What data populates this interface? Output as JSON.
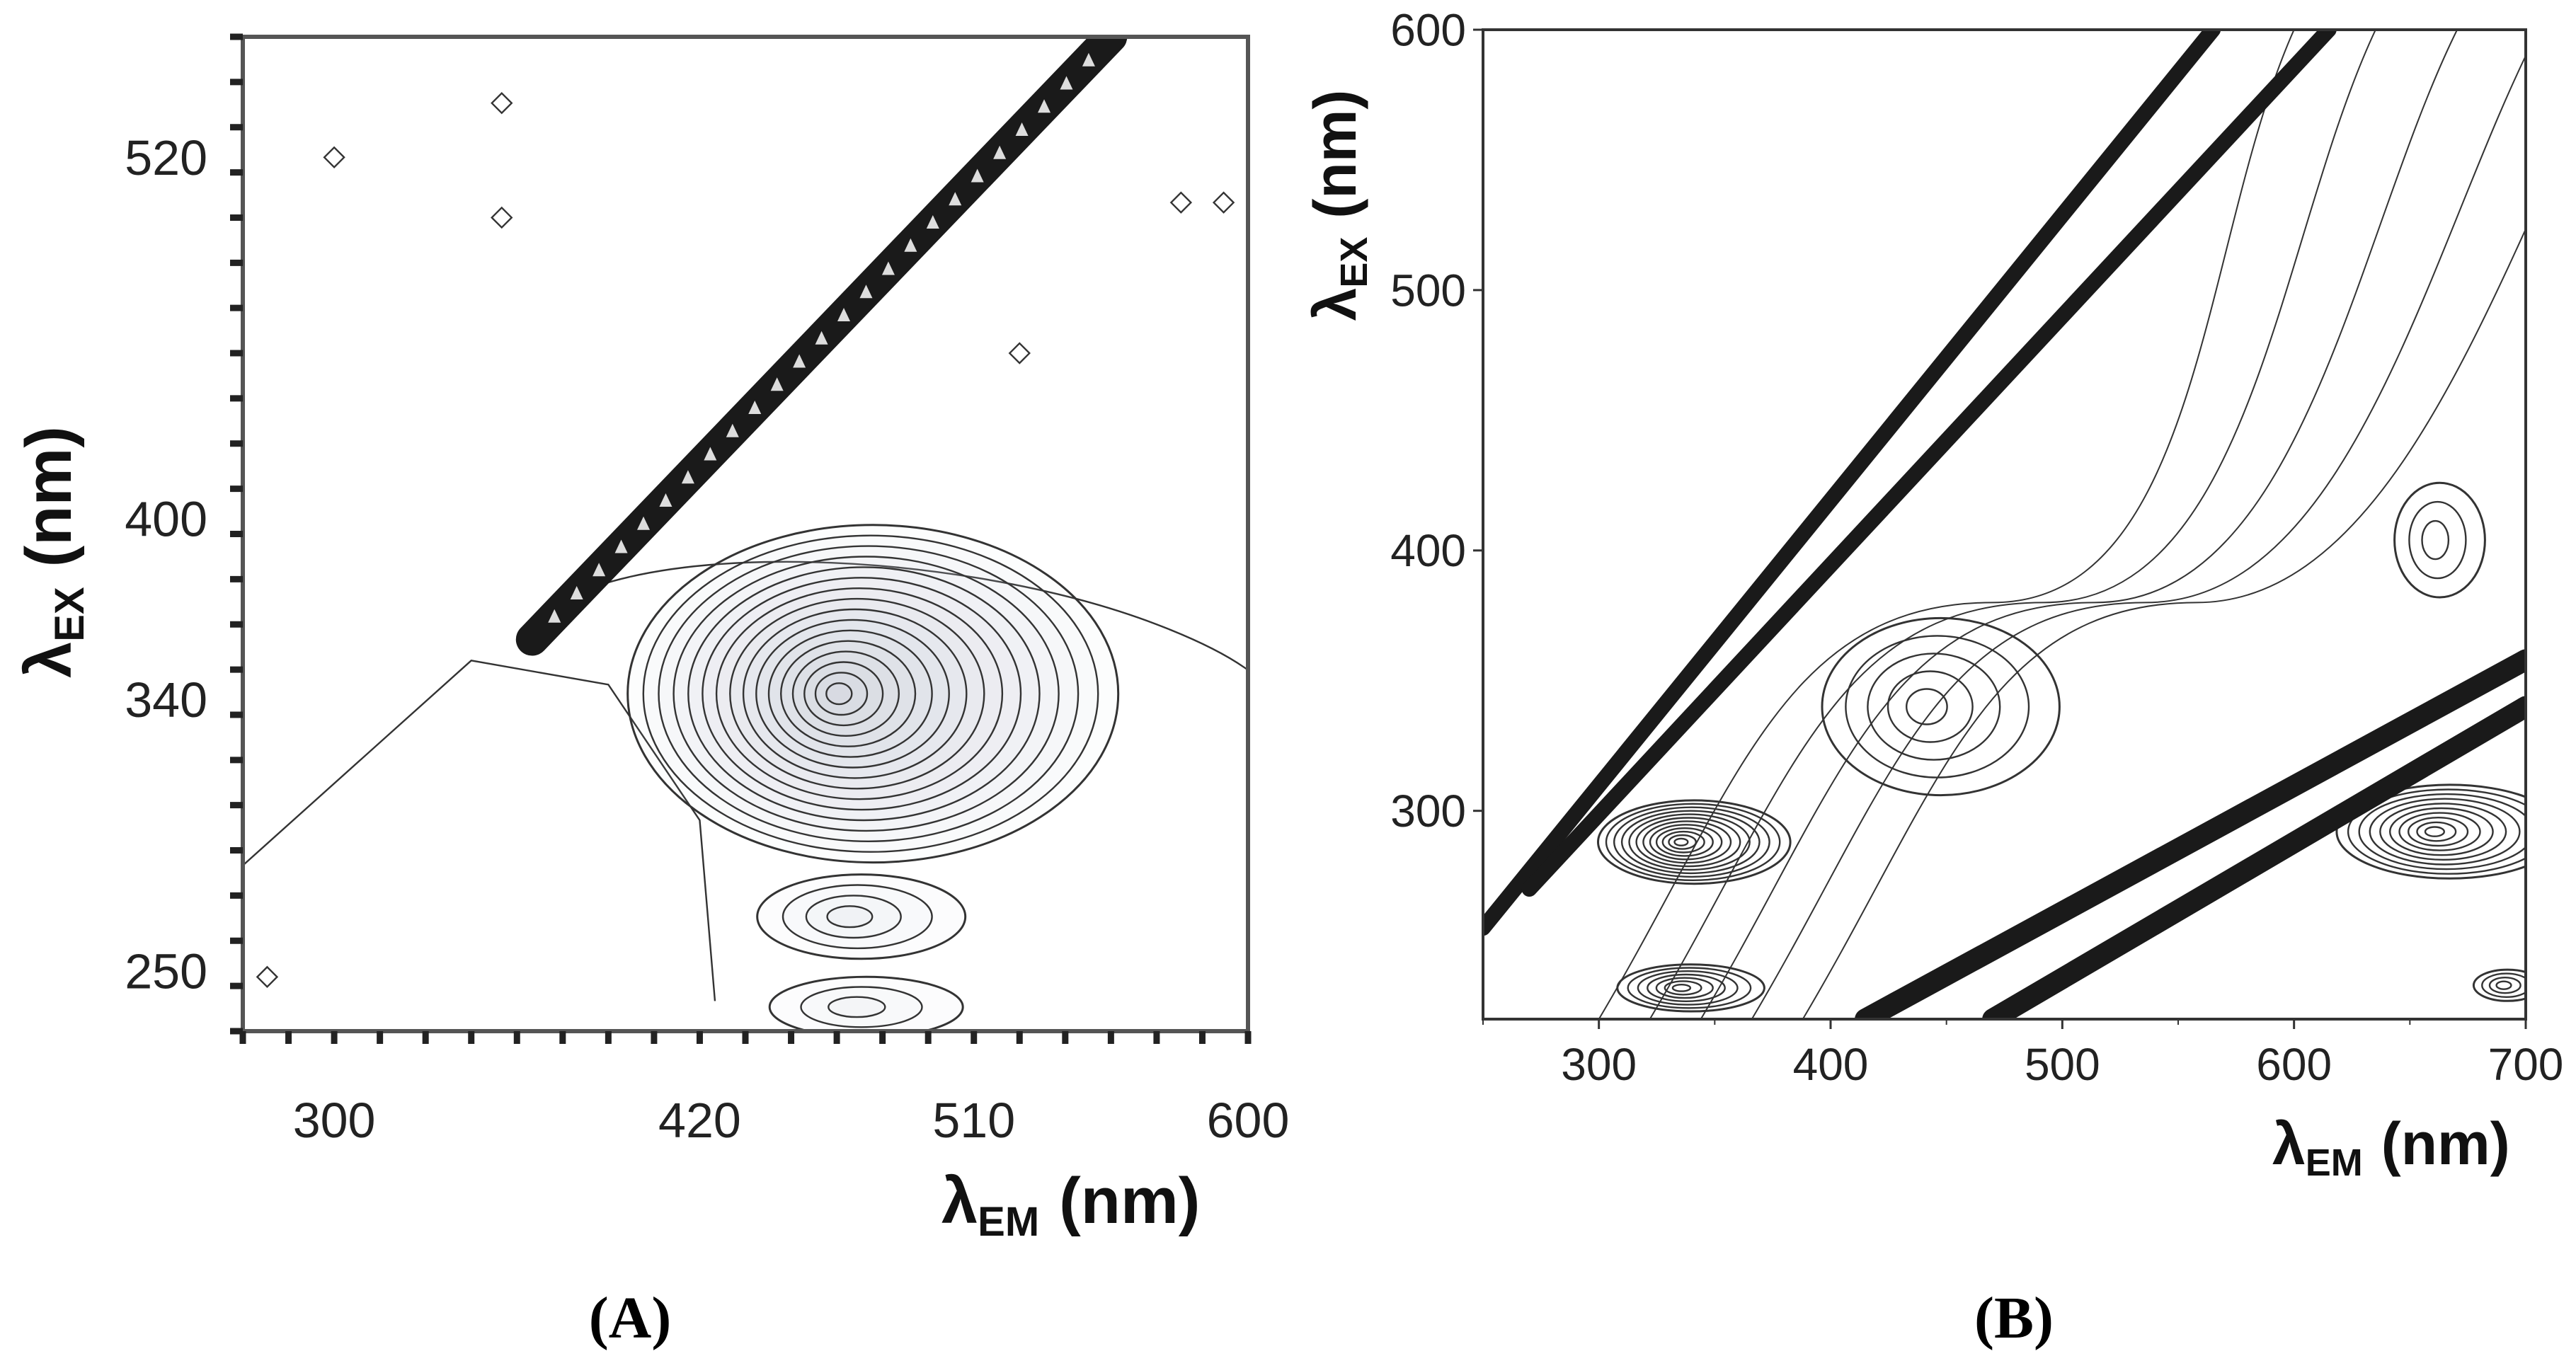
{
  "chart_data": [
    {
      "type": "heatmap",
      "subtype": "contour",
      "panel": "(A)",
      "xlabel": "λEM (nm)",
      "xlabel_main": "λ",
      "xlabel_sub": "EM",
      "xlabel_unit": "(nm)",
      "ylabel": "λEX (nm)",
      "ylabel_main": "λ",
      "ylabel_sub": "EX",
      "ylabel_unit": "(nm)",
      "xlim": [
        270,
        600
      ],
      "ylim": [
        230,
        560
      ],
      "xticks": [
        300,
        420,
        510,
        600
      ],
      "xtick_labels": [
        "300",
        "420",
        "510",
        "600"
      ],
      "yticks": [
        250,
        340,
        400,
        520
      ],
      "ytick_labels": [
        "250",
        "340",
        "400",
        "520"
      ],
      "grid": false,
      "peaks": [
        {
          "em": 465,
          "ex": 342,
          "levels": 16,
          "rx": 66,
          "ry": 56
        },
        {
          "em": 468,
          "ex": 268,
          "levels": 4,
          "rx": 28,
          "ry": 14
        },
        {
          "em": 470,
          "ex": 238,
          "levels": 3,
          "rx": 26,
          "ry": 10
        }
      ],
      "scatter_band": {
        "em_start": 365,
        "ex_start": 360,
        "em_end": 555,
        "ex_end": 560
      }
    },
    {
      "type": "heatmap",
      "subtype": "contour",
      "panel": "(B)",
      "xlabel": "λEM (nm)",
      "xlabel_main": "λ",
      "xlabel_sub": "EM",
      "xlabel_unit": "(nm)",
      "ylabel": "λEX (nm)",
      "ylabel_main": "λ",
      "ylabel_sub": "EX",
      "ylabel_unit": "(nm)",
      "xlim": [
        250,
        700
      ],
      "ylim": [
        220,
        600
      ],
      "xticks": [
        300,
        400,
        500,
        600,
        700
      ],
      "xtick_labels": [
        "300",
        "400",
        "500",
        "600",
        "700"
      ],
      "yticks": [
        300,
        400,
        500,
        600
      ],
      "ytick_labels": [
        "300",
        "400",
        "500",
        "600"
      ],
      "grid": false,
      "peaks": [
        {
          "em": 335,
          "ex": 288,
          "levels": 12,
          "rx": 34,
          "ry": 16
        },
        {
          "em": 335,
          "ex": 232,
          "levels": 7,
          "rx": 26,
          "ry": 9
        },
        {
          "em": 440,
          "ex": 340,
          "levels": 5,
          "rx": 42,
          "ry": 34
        },
        {
          "em": 660,
          "ex": 292,
          "levels": 10,
          "rx": 40,
          "ry": 18
        },
        {
          "em": 660,
          "ex": 404,
          "levels": 3,
          "rx": 16,
          "ry": 22
        },
        {
          "em": 690,
          "ex": 233,
          "levels": 4,
          "rx": 12,
          "ry": 6
        }
      ],
      "scatter_bands": [
        {
          "em_start": 250,
          "ex_start": 255,
          "em_end": 565,
          "ex_end": 600
        },
        {
          "em_start": 270,
          "ex_start": 270,
          "em_end": 615,
          "ex_end": 600
        },
        {
          "em_start": 415,
          "ex_start": 220,
          "em_end": 700,
          "ex_end": 358
        },
        {
          "em_start": 470,
          "ex_start": 220,
          "em_end": 700,
          "ex_end": 340
        }
      ]
    }
  ]
}
